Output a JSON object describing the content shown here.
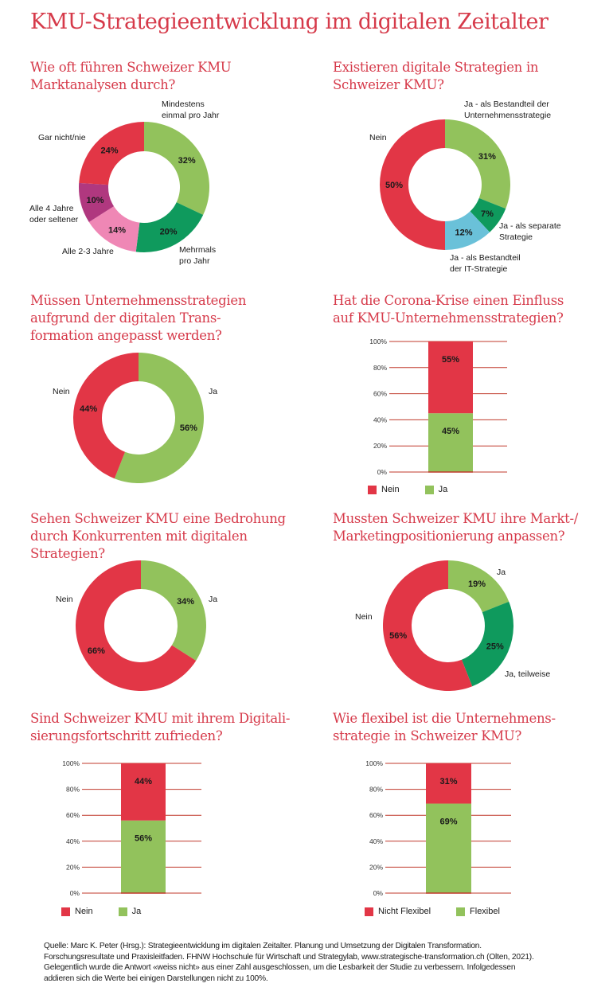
{
  "title": "KMU-Strategieentwicklung im digitalen Zeitalter",
  "colors": {
    "red": "#e23646",
    "light_green": "#92c25c",
    "dark_green": "#0f9a5d",
    "pink": "#ef87b5",
    "magenta": "#b0387f",
    "light_blue": "#6ac1d9",
    "title_red": "#d63a4a",
    "grid_red": "#c0392b"
  },
  "chart_data": [
    {
      "id": "marktanalysen",
      "type": "pie",
      "variant": "donut",
      "title_lines": [
        "Wie oft führen Schweizer KMU",
        "Marktanalysen durch?"
      ],
      "slices": [
        {
          "label": "Mindestens einmal pro Jahr",
          "label_lines": [
            "Mindestens",
            "einmal pro Jahr"
          ],
          "value": 32,
          "value_label": "32%",
          "color": "#92c25c"
        },
        {
          "label": "Mehrmals pro Jahr",
          "label_lines": [
            "Mehrmals",
            "pro Jahr"
          ],
          "value": 20,
          "value_label": "20%",
          "color": "#0f9a5d"
        },
        {
          "label": "Alle 2-3 Jahre",
          "label_lines": [
            "Alle 2-3 Jahre"
          ],
          "value": 14,
          "value_label": "14%",
          "color": "#ef87b5"
        },
        {
          "label": "Alle 4 Jahre oder seltener",
          "label_lines": [
            "Alle 4 Jahre",
            "oder seltener"
          ],
          "value": 10,
          "value_label": "10%",
          "color": "#b0387f"
        },
        {
          "label": "Gar nicht/nie",
          "label_lines": [
            "Gar nicht/nie"
          ],
          "value": 24,
          "value_label": "24%",
          "color": "#e23646"
        }
      ]
    },
    {
      "id": "digitale-strategien",
      "type": "pie",
      "variant": "donut",
      "title_lines": [
        "Existieren digitale Strategien in",
        "Schweizer KMU?"
      ],
      "slices": [
        {
          "label": "Ja - als Bestandteil der Unternehmensstrategie",
          "label_lines": [
            "Ja - als Bestandteil der",
            "Unternehmensstrategie"
          ],
          "value": 31,
          "value_label": "31%",
          "color": "#92c25c"
        },
        {
          "label": "Ja - als separate Strategie",
          "label_lines": [
            "Ja - als separate",
            "Strategie"
          ],
          "value": 7,
          "value_label": "7%",
          "color": "#0f9a5d"
        },
        {
          "label": "Ja - als Bestandteil der IT-Strategie",
          "label_lines": [
            "Ja - als Bestandteil",
            "der IT-Strategie"
          ],
          "value": 12,
          "value_label": "12%",
          "color": "#6ac1d9"
        },
        {
          "label": "Nein",
          "label_lines": [
            "Nein"
          ],
          "value": 50,
          "value_label": "50%",
          "color": "#e23646"
        }
      ]
    },
    {
      "id": "anpassung-transformation",
      "type": "pie",
      "variant": "donut",
      "title_lines": [
        "Müssen Unternehmensstrategien",
        "aufgrund der digitalen Trans-",
        "formation angepasst werden?"
      ],
      "slices": [
        {
          "label": "Ja",
          "label_lines": [
            "Ja"
          ],
          "value": 56,
          "value_label": "56%",
          "color": "#92c25c"
        },
        {
          "label": "Nein",
          "label_lines": [
            "Nein"
          ],
          "value": 44,
          "value_label": "44%",
          "color": "#e23646"
        }
      ]
    },
    {
      "id": "corona-einfluss",
      "type": "bar",
      "variant": "stacked-100",
      "title_lines": [
        "Hat die Corona-Krise einen Einfluss",
        "auf KMU-Unternehmensstrategien?"
      ],
      "ylim": [
        0,
        100
      ],
      "yticks": [
        "0%",
        "20%",
        "40%",
        "60%",
        "80%",
        "100%"
      ],
      "grid": true,
      "legend_position": "bottom-left",
      "series": [
        {
          "name": "Ja",
          "value": 45,
          "value_label": "45%",
          "color": "#92c25c"
        },
        {
          "name": "Nein",
          "value": 55,
          "value_label": "55%",
          "color": "#e23646"
        }
      ],
      "legend": [
        {
          "name": "Nein",
          "color": "#e23646"
        },
        {
          "name": "Ja",
          "color": "#92c25c"
        }
      ]
    },
    {
      "id": "bedrohung-konkurrenten",
      "type": "pie",
      "variant": "donut",
      "title_lines": [
        "Sehen Schweizer KMU eine Bedrohung",
        "durch Konkurrenten mit digitalen",
        "Strategien?"
      ],
      "slices": [
        {
          "label": "Ja",
          "label_lines": [
            "Ja"
          ],
          "value": 34,
          "value_label": "34%",
          "color": "#92c25c"
        },
        {
          "label": "Nein",
          "label_lines": [
            "Nein"
          ],
          "value": 66,
          "value_label": "66%",
          "color": "#e23646"
        }
      ]
    },
    {
      "id": "marketingpositionierung",
      "type": "pie",
      "variant": "donut",
      "title_lines": [
        "Mussten Schweizer KMU ihre Markt-/",
        "Marketingpositionierung anpassen?"
      ],
      "slices": [
        {
          "label": "Ja",
          "label_lines": [
            "Ja"
          ],
          "value": 19,
          "value_label": "19%",
          "color": "#92c25c"
        },
        {
          "label": "Ja, teilweise",
          "label_lines": [
            "Ja, teilweise"
          ],
          "value": 25,
          "value_label": "25%",
          "color": "#0f9a5d"
        },
        {
          "label": "Nein",
          "label_lines": [
            "Nein"
          ],
          "value": 56,
          "value_label": "56%",
          "color": "#e23646"
        }
      ]
    },
    {
      "id": "digitalisierungsfortschritt",
      "type": "bar",
      "variant": "stacked-100",
      "title_lines": [
        "Sind Schweizer KMU mit ihrem Digitali-",
        "sierungsfortschritt zufrieden?"
      ],
      "ylim": [
        0,
        100
      ],
      "yticks": [
        "0%",
        "20%",
        "40%",
        "60%",
        "80%",
        "100%"
      ],
      "grid": true,
      "legend_position": "bottom-left",
      "series": [
        {
          "name": "Ja",
          "value": 56,
          "value_label": "56%",
          "color": "#92c25c"
        },
        {
          "name": "Nein",
          "value": 44,
          "value_label": "44%",
          "color": "#e23646"
        }
      ],
      "legend": [
        {
          "name": "Nein",
          "color": "#e23646"
        },
        {
          "name": "Ja",
          "color": "#92c25c"
        }
      ]
    },
    {
      "id": "flexibilitaet",
      "type": "bar",
      "variant": "stacked-100",
      "title_lines": [
        "Wie flexibel ist die Unternehmens-",
        "strategie in Schweizer KMU?"
      ],
      "ylim": [
        0,
        100
      ],
      "yticks": [
        "0%",
        "20%",
        "40%",
        "60%",
        "80%",
        "100%"
      ],
      "grid": true,
      "legend_position": "bottom-left",
      "series": [
        {
          "name": "Flexibel",
          "value": 69,
          "value_label": "69%",
          "color": "#92c25c"
        },
        {
          "name": "Nicht Flexibel",
          "value": 31,
          "value_label": "31%",
          "color": "#e23646"
        }
      ],
      "legend": [
        {
          "name": "Nicht Flexibel",
          "color": "#e23646"
        },
        {
          "name": "Flexibel",
          "color": "#92c25c"
        }
      ]
    }
  ],
  "source_lines": [
    "Quelle: Marc K. Peter (Hrsg.): Strategieentwicklung im digitalen Zeitalter. Planung und Umsetzung der Digitalen Transformation.",
    "Forschungsresultate und Praxisleitfaden. FHNW Hochschule für Wirtschaft und Strategylab, www.strategische-transformation.ch (Olten, 2021).",
    "Gelegentlich wurde die Antwort «weiss nicht» aus einer Zahl ausgeschlossen, um die Lesbarkeit der Studie zu verbessern. Infolgedessen",
    "addieren sich die Werte bei einigen Darstellungen nicht zu 100%."
  ]
}
